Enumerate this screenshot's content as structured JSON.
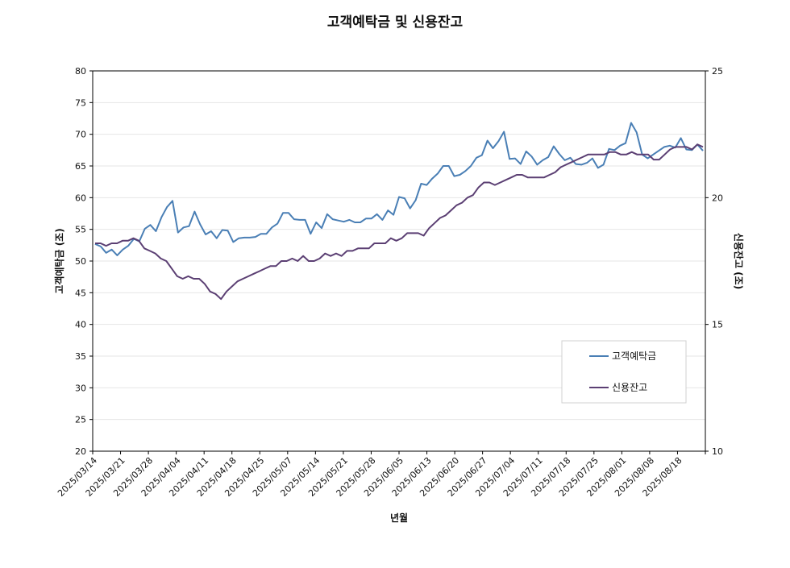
{
  "chart_data": {
    "type": "line",
    "title": "고객예탁금 및 신용잔고",
    "xlabel": "년월",
    "ylabel_left": "고객예탁금 (조)",
    "ylabel_right": "신용잔고 (조)",
    "ylim_left": [
      20,
      80
    ],
    "yticks_left": [
      20,
      25,
      30,
      35,
      40,
      45,
      50,
      55,
      60,
      65,
      70,
      75,
      80
    ],
    "ylim_right": [
      10,
      25
    ],
    "yticks_right": [
      10,
      15,
      20,
      25
    ],
    "grid": "horizontal",
    "legend_position": "bottom-right",
    "x_tick_labels": [
      "2025/03/14",
      "2025/03/21",
      "2025/03/28",
      "2025/04/04",
      "2025/04/11",
      "2025/04/18",
      "2025/04/25",
      "2025/05/07",
      "2025/05/14",
      "2025/05/21",
      "2025/05/28",
      "2025/06/05",
      "2025/06/13",
      "2025/06/20",
      "2025/06/27",
      "2025/07/04",
      "2025/07/11",
      "2025/07/18",
      "2025/07/25",
      "2025/08/01",
      "2025/08/08",
      "2025/08/18"
    ],
    "series": [
      {
        "name": "고객예탁금",
        "color": "#4a7fb5",
        "axis": "left",
        "values": [
          52.7,
          52.3,
          51.3,
          51.8,
          50.9,
          51.8,
          52.4,
          53.5,
          53.1,
          55.1,
          55.7,
          54.7,
          56.9,
          58.5,
          59.5,
          54.5,
          55.3,
          55.5,
          57.8,
          55.8,
          54.2,
          54.7,
          53.6,
          54.9,
          54.8,
          53.0,
          53.6,
          53.7,
          53.7,
          53.8,
          54.3,
          54.3,
          55.3,
          55.9,
          57.6,
          57.6,
          56.6,
          56.5,
          56.5,
          54.3,
          56.1,
          55.2,
          57.4,
          56.6,
          56.4,
          56.2,
          56.5,
          56.1,
          56.1,
          56.7,
          56.7,
          57.4,
          56.5,
          58.0,
          57.3,
          60.1,
          59.9,
          58.3,
          59.6,
          62.2,
          62.0,
          63.0,
          63.8,
          65.0,
          65.0,
          63.4,
          63.6,
          64.2,
          65.0,
          66.3,
          66.7,
          69.0,
          67.8,
          68.9,
          70.4,
          66.1,
          66.2,
          65.3,
          67.3,
          66.5,
          65.2,
          65.9,
          66.4,
          68.1,
          66.9,
          65.9,
          66.3,
          65.3,
          65.2,
          65.5,
          66.2,
          64.7,
          65.2,
          67.7,
          67.5,
          68.2,
          68.6,
          71.8,
          70.3,
          66.8,
          66.2,
          66.8,
          67.4,
          68.0,
          68.2,
          67.9,
          69.4,
          67.6,
          67.5,
          68.4,
          67.4
        ]
      },
      {
        "name": "신용잔고",
        "color": "#5b3f73",
        "axis": "right",
        "values": [
          18.2,
          18.2,
          18.1,
          18.2,
          18.2,
          18.3,
          18.3,
          18.4,
          18.3,
          18.0,
          17.9,
          17.8,
          17.6,
          17.5,
          17.2,
          16.9,
          16.8,
          16.9,
          16.8,
          16.8,
          16.6,
          16.3,
          16.2,
          16.0,
          16.3,
          16.5,
          16.7,
          16.8,
          16.9,
          17.0,
          17.1,
          17.2,
          17.3,
          17.3,
          17.5,
          17.5,
          17.6,
          17.5,
          17.7,
          17.5,
          17.5,
          17.6,
          17.8,
          17.7,
          17.8,
          17.7,
          17.9,
          17.9,
          18.0,
          18.0,
          18.0,
          18.2,
          18.2,
          18.2,
          18.4,
          18.3,
          18.4,
          18.6,
          18.6,
          18.6,
          18.5,
          18.8,
          19.0,
          19.2,
          19.3,
          19.5,
          19.7,
          19.8,
          20.0,
          20.1,
          20.4,
          20.6,
          20.6,
          20.5,
          20.6,
          20.7,
          20.8,
          20.9,
          20.9,
          20.8,
          20.8,
          20.8,
          20.8,
          20.9,
          21.0,
          21.2,
          21.3,
          21.4,
          21.5,
          21.6,
          21.7,
          21.7,
          21.7,
          21.7,
          21.8,
          21.8,
          21.7,
          21.7,
          21.8,
          21.7,
          21.7,
          21.7,
          21.5,
          21.5,
          21.7,
          21.9,
          22.0,
          22.0,
          22.0,
          21.9,
          22.1,
          22.0
        ]
      }
    ]
  }
}
